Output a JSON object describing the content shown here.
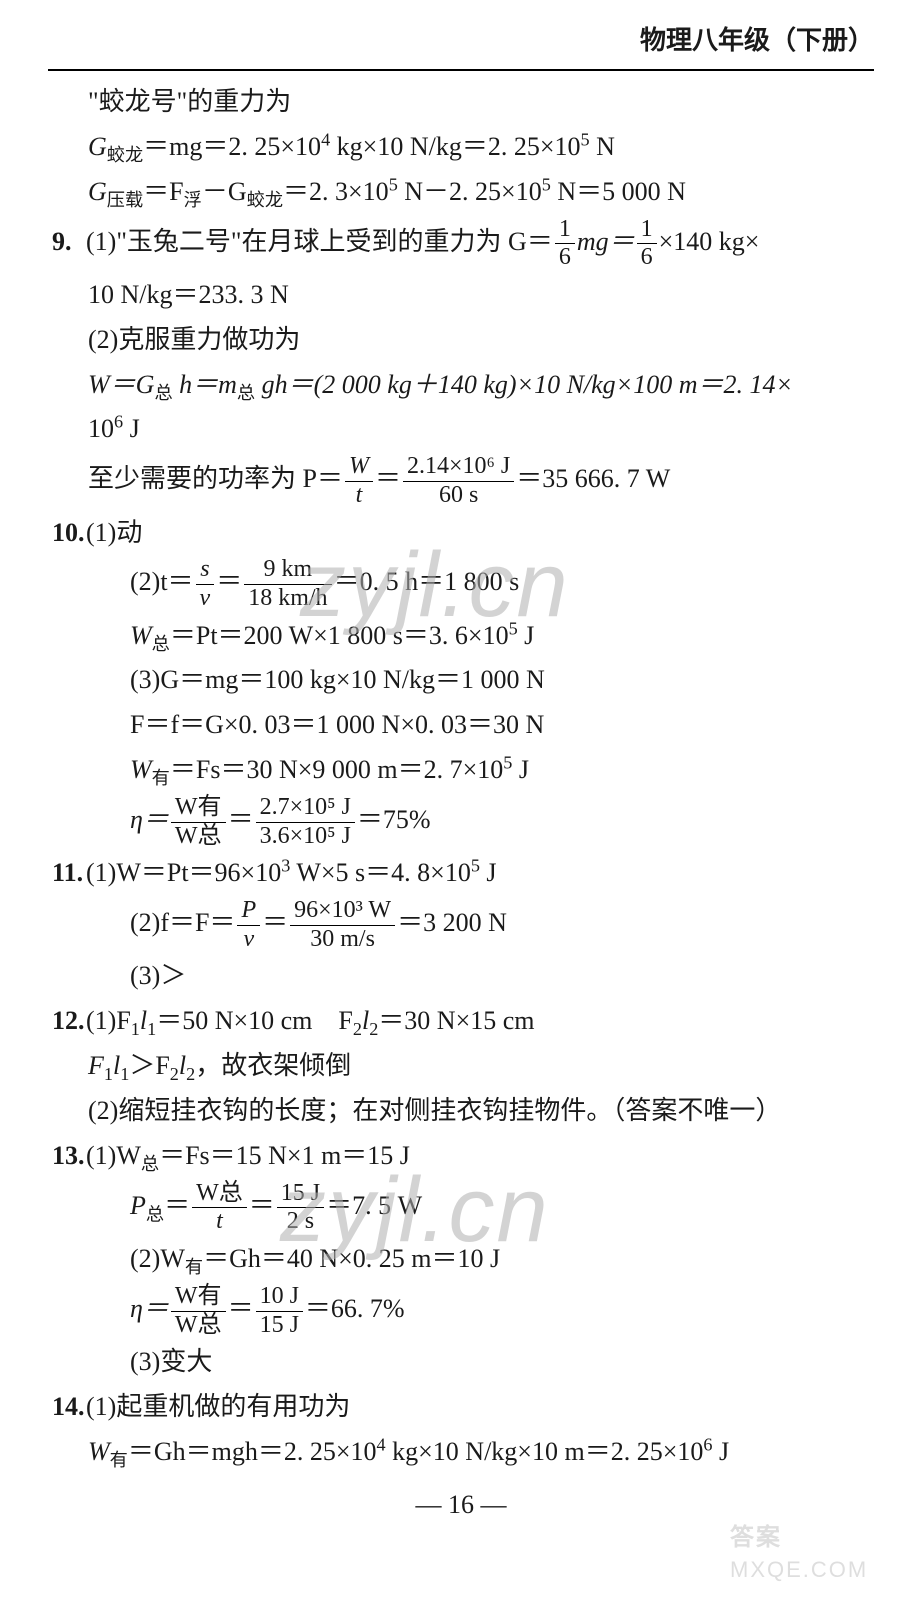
{
  "header": "物理八年级（下册）",
  "pagenum": "— 16 —",
  "watermarks": {
    "w1": "zyjl.cn",
    "w2": "zyjl.cn",
    "brand": "答案",
    "site": "MXQE.COM"
  },
  "lines": {
    "l1": "\"蛟龙号\"的重力为",
    "l2a": "G",
    "l2a_sub": "蛟龙",
    "l2b": "＝mg＝2. 25×10",
    "l2c": " kg×10 N/kg＝2. 25×10",
    "l2d": " N",
    "l3a": "G",
    "l3a_sub": "压载",
    "l3b": "＝F",
    "l3b_sub": "浮",
    "l3c": "－G",
    "l3c_sub": "蛟龙",
    "l3d": "＝2. 3×10",
    "l3e": " N－2. 25×10",
    "l3f": " N＝5 000 N",
    "p9num": "9.",
    "p9a": "(1)\"玉兔二号\"在月球上受到的重力为 G＝",
    "p9b": "mg＝",
    "p9c": "×140 kg×",
    "p9l2": "10 N/kg＝233. 3 N",
    "p9l3": "(2)克服重力做功为",
    "p9l4a": "W＝G",
    "p9l4a_sub": "总",
    "p9l4b": " h＝m",
    "p9l4b_sub": "总",
    "p9l4c": " gh＝(2 000 kg＋140 kg)×10 N/kg×100 m＝2. 14×",
    "p9l5": "10",
    "p9l5b": " J",
    "p9l6a": "至少需要的功率为 P＝",
    "p9l6b": "＝",
    "p9l6c": "＝35 666. 7 W",
    "fr_W": "W",
    "fr_t": "t",
    "fr_214": "2.14×10⁶ J",
    "fr_60s": "60 s",
    "fr_1": "1",
    "fr_6": "6",
    "p10num": "10.",
    "p10a": "(1)动",
    "p10b1": "(2)t＝",
    "p10b2": "＝",
    "p10b3": "＝0. 5 h＝1 800 s",
    "fr_s": "s",
    "fr_v": "v",
    "fr_9km": "9 km",
    "fr_18kmh": "18 km/h",
    "p10c1": "W",
    "p10c1_sub": "总",
    "p10c2": "＝Pt＝200 W×1 800 s＝3. 6×10",
    "p10c3": " J",
    "p10d": "(3)G＝mg＝100 kg×10 N/kg＝1 000 N",
    "p10e": "F＝f＝G×0. 03＝1 000 N×0. 03＝30 N",
    "p10f1": "W",
    "p10f1_sub": "有",
    "p10f2": "＝Fs＝30 N×9 000 m＝2. 7×10",
    "p10f3": " J",
    "p10g1": "η＝",
    "p10g2": "＝",
    "p10g3": "＝75%",
    "fr_wyou": "W有",
    "fr_wzong": "W总",
    "fr_27": "2.7×10⁵ J",
    "fr_36": "3.6×10⁵ J",
    "p11num": "11.",
    "p11a1": "(1)W＝Pt＝96×10",
    "p11a2": " W×5 s＝4. 8×10",
    "p11a3": " J",
    "p11b1": "(2)f＝F＝",
    "p11b2": "＝",
    "p11b3": "＝3 200 N",
    "fr_P": "P",
    "fr_96": "96×10³ W",
    "fr_30ms": "30 m/s",
    "p11c": "(3)＞",
    "p12num": "12.",
    "p12a1": "(1)F",
    "p12a2": "l",
    "p12a3": "＝50 N×10 cm　F",
    "p12a4": "l",
    "p12a5": "＝30 N×15 cm",
    "sub1": "1",
    "sub2": "2",
    "p12b1": "F",
    "p12b2": "l",
    "p12b3": "＞F",
    "p12b4": "l",
    "p12b5": "，故衣架倾倒",
    "p12c": "(2)缩短挂衣钩的长度；在对侧挂衣钩挂物件。（答案不唯一）",
    "p13num": "13.",
    "p13a1": "(1)W",
    "p13a1_sub": "总",
    "p13a2": "＝Fs＝15 N×1 m＝15 J",
    "p13b1": "P",
    "p13b1_sub": "总",
    "p13b2": "＝",
    "p13b3": "＝",
    "p13b4": "＝7. 5 W",
    "fr_wz2": "W总",
    "fr_t2": "t",
    "fr_15j": "15 J",
    "fr_2s": "2 s",
    "p13c1": "(2)W",
    "p13c1_sub": "有",
    "p13c2": "＝Gh＝40 N×0. 25 m＝10 J",
    "p13d1": "η＝",
    "p13d2": "＝",
    "p13d3": "＝66. 7%",
    "fr_10j": "10 J",
    "fr_15j2": "15 J",
    "p13e": "(3)变大",
    "p14num": "14.",
    "p14a": "(1)起重机做的有用功为",
    "p14b1": "W",
    "p14b1_sub": "有",
    "p14b2": "＝Gh＝mgh＝2. 25×10",
    "p14b3": " kg×10 N/kg×10 m＝2. 25×10",
    "p14b4": " J",
    "sup4": "4",
    "sup5": "5",
    "sup6": "6",
    "sup3": "3"
  }
}
